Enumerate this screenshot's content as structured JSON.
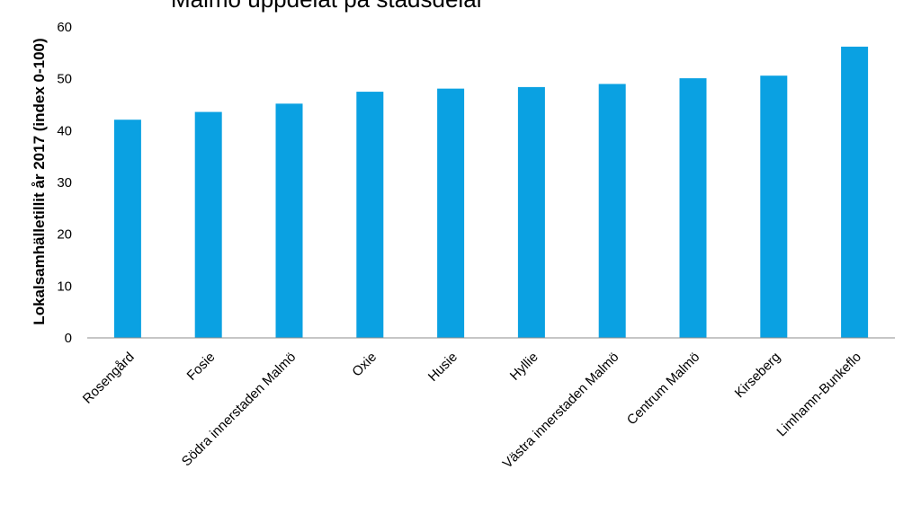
{
  "chart_data": {
    "type": "bar",
    "title": "Malmö uppdelat på stadsdelar",
    "xlabel": "",
    "ylabel": "Lokalsamhälletillit år 2017 (index 0-100)",
    "categories": [
      "Rosengård",
      "Fosie",
      "Södra innerstaden Malmö",
      "Oxie",
      "Husie",
      "Hyllie",
      "Västra innerstaden Malmö",
      "Centrum Malmö",
      "Kirseberg",
      "Limhamn-Bunkeflo"
    ],
    "values": [
      42.1,
      43.6,
      45.2,
      47.5,
      48.1,
      48.4,
      49.0,
      50.1,
      50.6,
      56.2
    ],
    "ylim": [
      0,
      60
    ],
    "yticks": [
      "0",
      "10",
      "20",
      "30",
      "40",
      "50",
      "60"
    ],
    "grid": false,
    "legend": "none",
    "bar_color": "#0aa1e2",
    "axis_color": "#8c8c8c"
  }
}
